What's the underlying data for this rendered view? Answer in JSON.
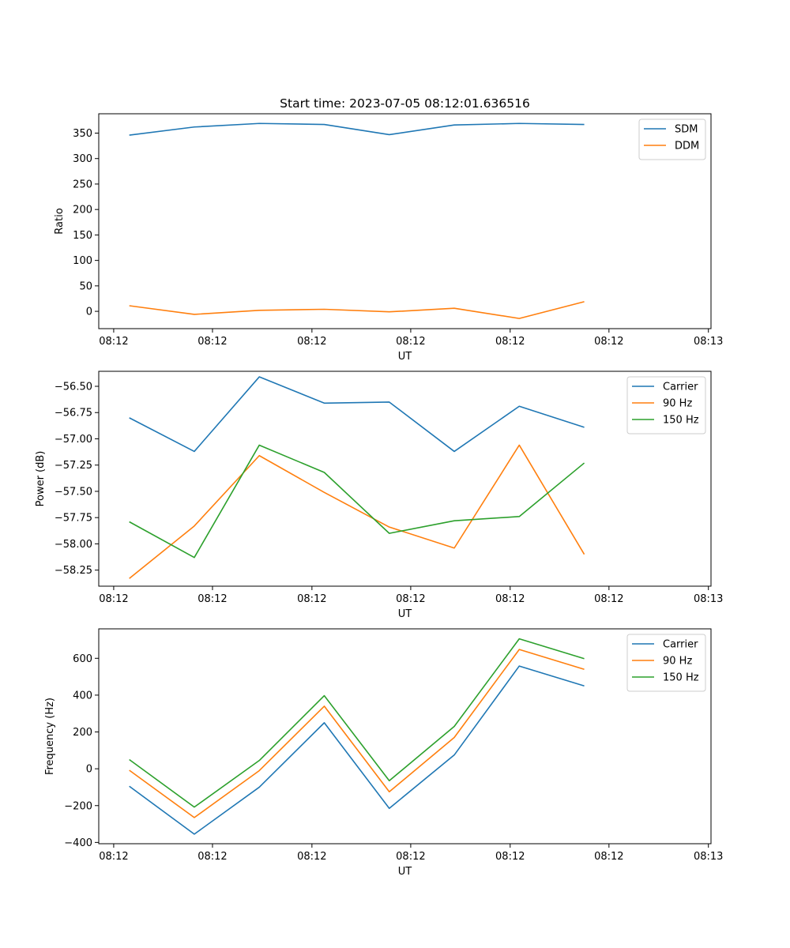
{
  "title": "Start time: 2023-07-05 08:12:01.636516",
  "colors": {
    "blue": "#1f77b4",
    "orange": "#ff7f0e",
    "green": "#2ca02c"
  },
  "chart_data": [
    {
      "type": "line",
      "title": "Start time: 2023-07-05 08:12:01.636516",
      "xlabel": "UT",
      "ylabel": "Ratio",
      "x": [
        1,
        2,
        3,
        4,
        5,
        6,
        7,
        8
      ],
      "xlim": [
        0.53,
        9.95
      ],
      "x_ticks": [
        0.76,
        2.28,
        3.81,
        5.33,
        6.86,
        8.38,
        9.91
      ],
      "x_tick_labels": [
        "08:12",
        "08:12",
        "08:12",
        "08:12",
        "08:12",
        "08:12",
        "08:13"
      ],
      "ylim": [
        -34,
        388
      ],
      "y_ticks": [
        0,
        50,
        100,
        150,
        200,
        250,
        300,
        350
      ],
      "y_tick_labels": [
        "0",
        "50",
        "100",
        "150",
        "200",
        "250",
        "300",
        "350"
      ],
      "legend_loc": "upper right",
      "series": [
        {
          "name": "SDM",
          "color": "#1f77b4",
          "values": [
            346,
            362,
            369,
            367,
            347,
            366,
            369,
            367
          ]
        },
        {
          "name": "DDM",
          "color": "#ff7f0e",
          "values": [
            11,
            -6,
            2,
            4,
            -1,
            6,
            -14,
            19
          ]
        }
      ]
    },
    {
      "type": "line",
      "xlabel": "UT",
      "ylabel": "Power (dB)",
      "x": [
        1,
        2,
        3,
        4,
        5,
        6,
        7,
        8
      ],
      "xlim": [
        0.53,
        9.95
      ],
      "x_ticks": [
        0.76,
        2.28,
        3.81,
        5.33,
        6.86,
        8.38,
        9.91
      ],
      "x_tick_labels": [
        "08:12",
        "08:12",
        "08:12",
        "08:12",
        "08:12",
        "08:12",
        "08:13"
      ],
      "ylim": [
        -58.403,
        -56.357
      ],
      "y_ticks": [
        -58.25,
        -58.0,
        -57.75,
        -57.5,
        -57.25,
        -57.0,
        -56.75,
        -56.5
      ],
      "y_tick_labels": [
        "−58.25",
        "−58.00",
        "−57.75",
        "−57.50",
        "−57.25",
        "−57.00",
        "−56.75",
        "−56.50"
      ],
      "legend_loc": "upper right",
      "series": [
        {
          "name": "Carrier",
          "color": "#1f77b4",
          "values": [
            -56.8,
            -57.12,
            -56.41,
            -56.66,
            -56.65,
            -57.12,
            -56.69,
            -56.89
          ]
        },
        {
          "name": "90 Hz",
          "color": "#ff7f0e",
          "values": [
            -58.33,
            -57.83,
            -57.16,
            -57.51,
            -57.84,
            -58.04,
            -57.06,
            -58.1
          ]
        },
        {
          "name": "150 Hz",
          "color": "#2ca02c",
          "values": [
            -57.79,
            -58.13,
            -57.06,
            -57.32,
            -57.9,
            -57.78,
            -57.74,
            -57.23
          ]
        }
      ]
    },
    {
      "type": "line",
      "xlabel": "UT",
      "ylabel": "Frequency (Hz)",
      "x": [
        1,
        2,
        3,
        4,
        5,
        6,
        7,
        8
      ],
      "xlim": [
        0.53,
        9.95
      ],
      "x_ticks": [
        0.76,
        2.28,
        3.81,
        5.33,
        6.86,
        8.38,
        9.91
      ],
      "x_tick_labels": [
        "08:12",
        "08:12",
        "08:12",
        "08:12",
        "08:12",
        "08:12",
        "08:13"
      ],
      "ylim": [
        -407,
        760
      ],
      "y_ticks": [
        -400,
        -200,
        0,
        200,
        400,
        600
      ],
      "y_tick_labels": [
        "−400",
        "−200",
        "0",
        "200",
        "400",
        "600"
      ],
      "legend_loc": "upper right",
      "series": [
        {
          "name": "Carrier",
          "color": "#1f77b4",
          "values": [
            -95,
            -355,
            -100,
            250,
            -215,
            75,
            558,
            450
          ]
        },
        {
          "name": "90 Hz",
          "color": "#ff7f0e",
          "values": [
            -8,
            -265,
            -10,
            340,
            -125,
            170,
            648,
            540
          ]
        },
        {
          "name": "150 Hz",
          "color": "#2ca02c",
          "values": [
            50,
            -208,
            45,
            397,
            -65,
            230,
            706,
            598
          ]
        }
      ]
    }
  ]
}
